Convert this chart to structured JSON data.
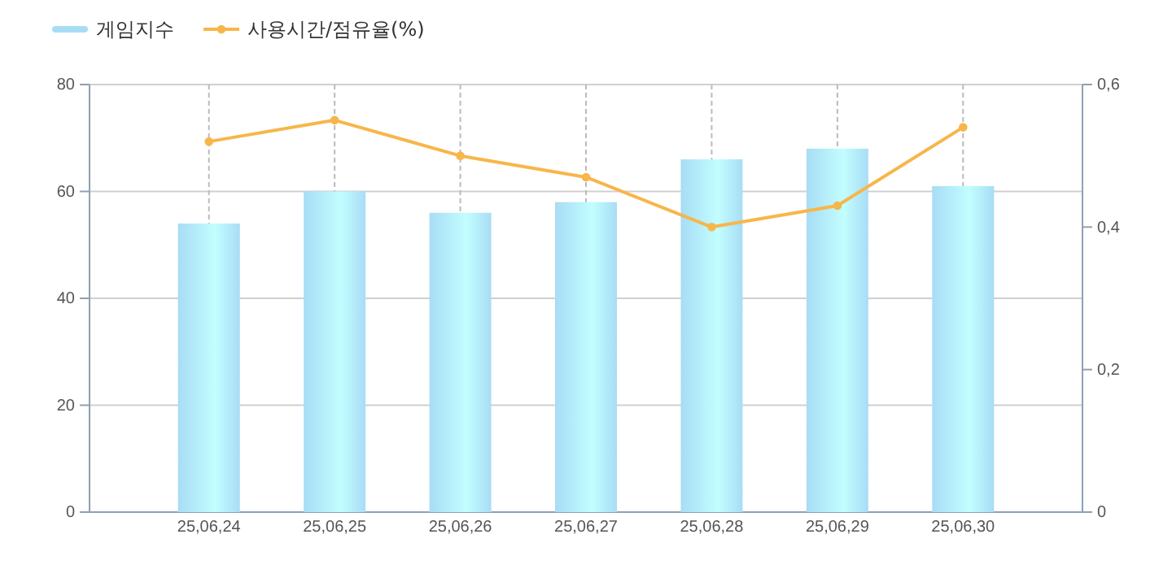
{
  "chart_data": {
    "type": "bar",
    "categories": [
      "25,06,24",
      "25,06,25",
      "25,06,26",
      "25,06,27",
      "25,06,28",
      "25,06,29",
      "25,06,30"
    ],
    "series": [
      {
        "name": "게임지수",
        "color": "#a8dcf5",
        "values": [
          54,
          60,
          56,
          58,
          66,
          68,
          61
        ]
      },
      {
        "name": "사용시간/점유율(%)",
        "type": "line",
        "axis": "y2",
        "color": "#f7b64a",
        "values": [
          0.52,
          0.55,
          0.5,
          0.47,
          0.4,
          0.43,
          0.54
        ]
      }
    ],
    "ylim": [
      0,
      80
    ],
    "yticks": [
      0,
      20,
      40,
      60,
      80
    ],
    "y2lim": [
      0,
      0.6
    ],
    "y2ticks": [
      0,
      {
        "value": 0.2,
        "label": "0,2"
      },
      {
        "value": 0.4,
        "label": "0,4"
      },
      {
        "value": 0.6,
        "label": "0,6"
      }
    ],
    "grid": true,
    "legend": "top left",
    "marker": "circle",
    "line_style": "solid"
  }
}
